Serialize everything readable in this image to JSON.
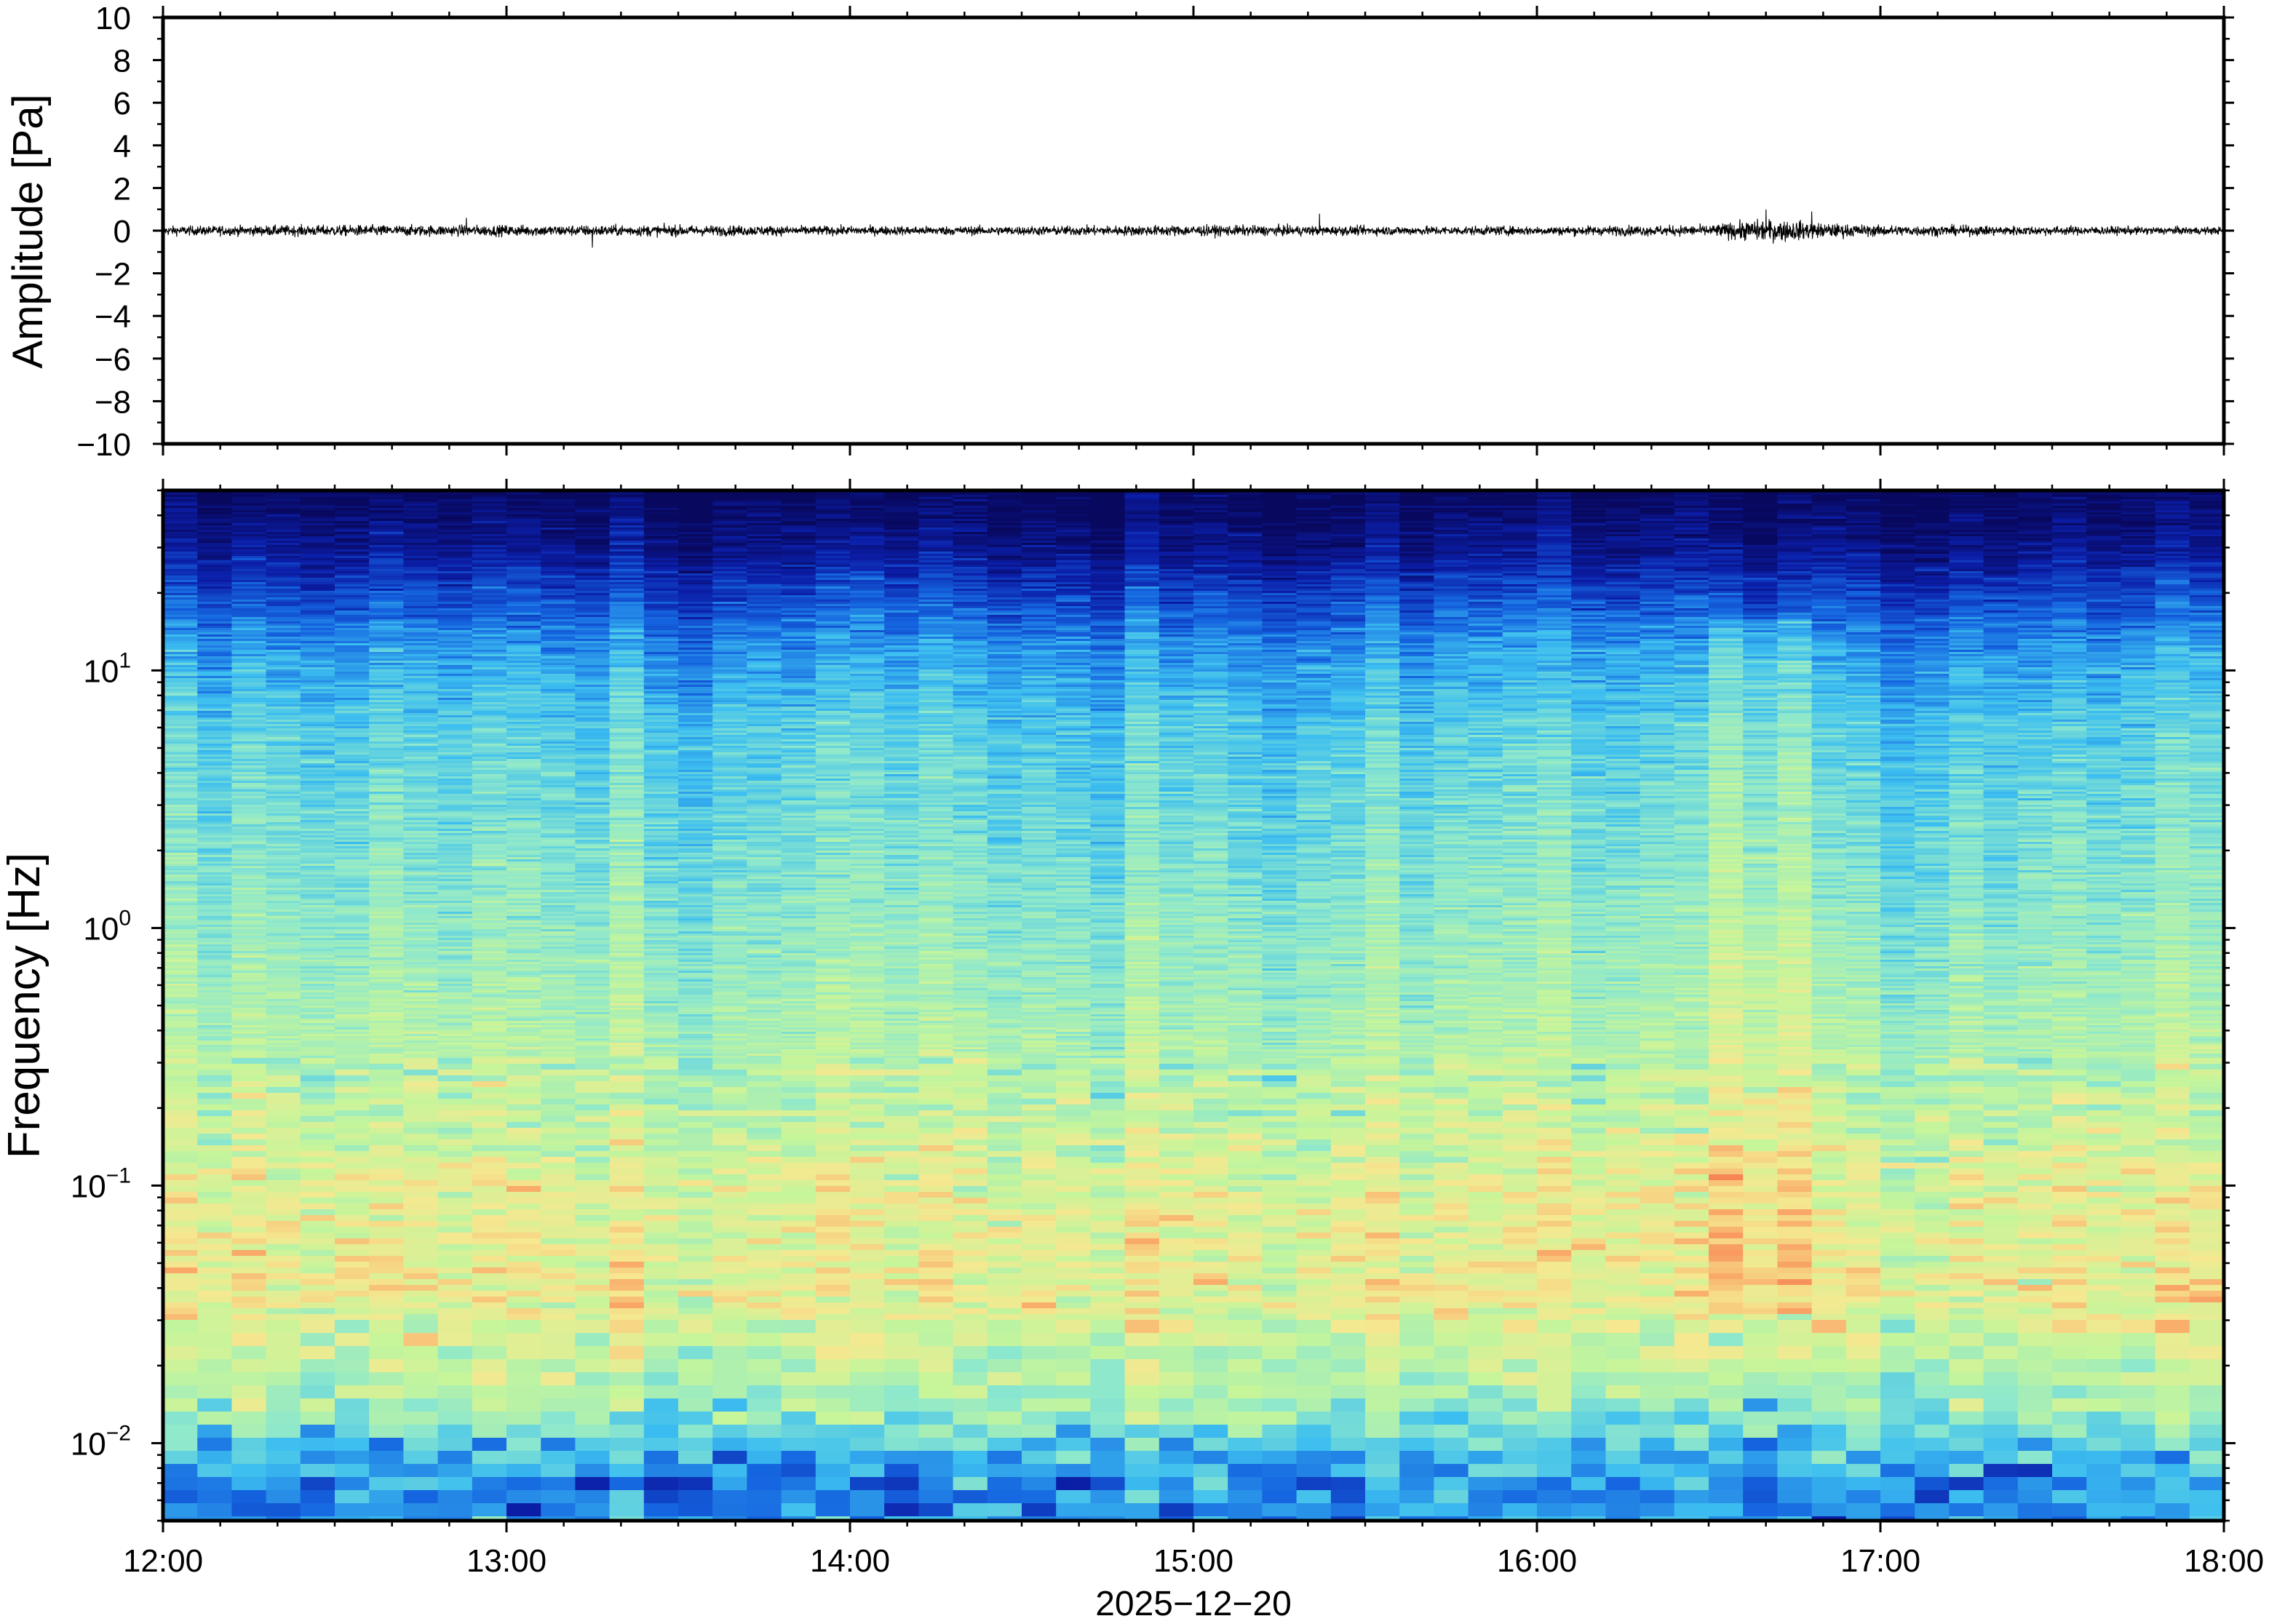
{
  "chart_data": [
    {
      "type": "line",
      "panel": "waveform",
      "ylabel": "Amplitude [Pa]",
      "ylim": [
        -10,
        10
      ],
      "yticks": [
        -10,
        -8,
        -6,
        -4,
        -2,
        0,
        2,
        4,
        6,
        8,
        10
      ],
      "ytick_labels": [
        "−10",
        "−8",
        "−6",
        "−4",
        "−2",
        "0",
        "2",
        "4",
        "6",
        "8",
        "10"
      ],
      "x_start": "2025-12-20T12:00",
      "x_end": "2025-12-20T18:00",
      "line_color": "#000000",
      "envelope": {
        "times": [
          "12:00",
          "12:30",
          "13:00",
          "13:30",
          "14:00",
          "14:30",
          "15:00",
          "15:30",
          "16:00",
          "16:30",
          "16:35",
          "16:40",
          "16:45",
          "16:50",
          "17:00",
          "17:30",
          "18:00"
        ],
        "half_amplitude_pa": [
          0.25,
          0.3,
          0.3,
          0.3,
          0.25,
          0.25,
          0.3,
          0.25,
          0.25,
          0.3,
          0.5,
          0.6,
          0.55,
          0.4,
          0.3,
          0.25,
          0.2
        ]
      },
      "spikes": [
        {
          "time": "12:53",
          "value_pa": 0.6
        },
        {
          "time": "13:15",
          "value_pa": -0.8
        },
        {
          "time": "15:22",
          "value_pa": 0.8
        },
        {
          "time": "16:40",
          "value_pa": 1.0
        },
        {
          "time": "16:48",
          "value_pa": 0.9
        }
      ]
    },
    {
      "type": "heatmap",
      "panel": "spectrogram",
      "ylabel": "Frequency [Hz]",
      "yscale": "log",
      "ylim": [
        0.005,
        50
      ],
      "yticks": [
        {
          "value": 0.01,
          "base": "10",
          "exp": "−2"
        },
        {
          "value": 0.1,
          "base": "10",
          "exp": "−1"
        },
        {
          "value": 1,
          "base": "10",
          "exp": "0"
        },
        {
          "value": 10,
          "base": "10",
          "exp": "1"
        }
      ],
      "xlabel": "2025−12−20",
      "xticks": [
        "12:00",
        "13:00",
        "14:00",
        "15:00",
        "16:00",
        "17:00",
        "18:00"
      ],
      "colormap": [
        "#08085e",
        "#0b1ea8",
        "#1565e0",
        "#3cbef0",
        "#8ee8cc",
        "#c6f59a",
        "#f5e890",
        "#f9ab6a",
        "#f4704a"
      ],
      "time_columns": 60,
      "profile": {
        "freq_hz": [
          0.006,
          0.009,
          0.012,
          0.02,
          0.04,
          0.1,
          0.2,
          0.5,
          2,
          6,
          12,
          20,
          30,
          50
        ],
        "level": [
          0.32,
          0.38,
          0.52,
          0.62,
          0.72,
          0.69,
          0.62,
          0.56,
          0.48,
          0.42,
          0.33,
          0.2,
          0.08,
          0.0
        ]
      },
      "events": [
        {
          "start": "16:30",
          "end": "16:50",
          "level_boost": 0.1
        }
      ]
    }
  ]
}
